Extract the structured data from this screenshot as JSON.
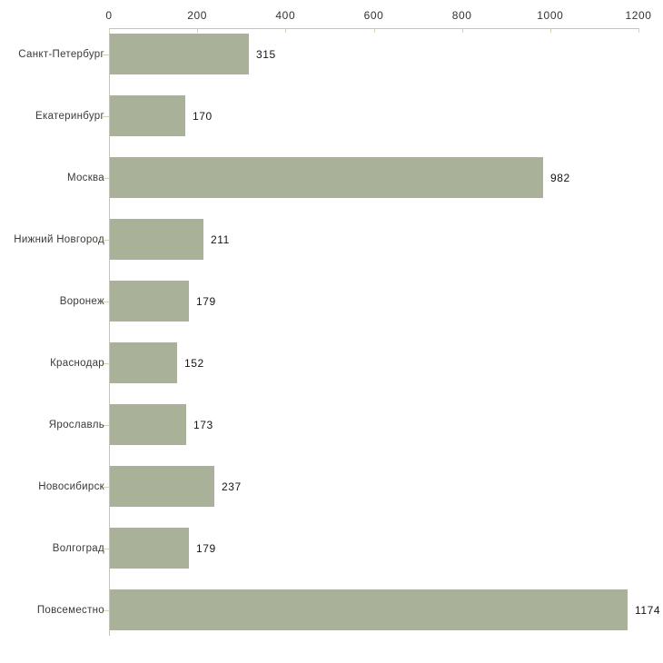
{
  "chart_data": {
    "type": "bar",
    "orientation": "horizontal",
    "title": "",
    "xlabel": "",
    "ylabel": "",
    "categories": [
      "Санкт-Петербург",
      "Екатеринбург",
      "Москва",
      "Нижний Новгород",
      "Воронеж",
      "Краснодар",
      "Ярославль",
      "Новосибирск",
      "Волгоград",
      "Повсеместно"
    ],
    "values": [
      315,
      170,
      982,
      211,
      179,
      152,
      173,
      237,
      179,
      1174
    ],
    "value_labels": [
      "315",
      "170",
      "982",
      "211",
      "179",
      "152",
      "173",
      "237",
      "179",
      "1174"
    ],
    "x_ticks": [
      0,
      200,
      400,
      600,
      800,
      1000,
      1200
    ],
    "x_tick_labels": [
      "0",
      "200",
      "400",
      "600",
      "800",
      "1000",
      "1200"
    ],
    "xlim": [
      0,
      1200
    ],
    "grid": false,
    "legend": null,
    "data_labels": true,
    "colors": {
      "bar_fill": "#a9b199",
      "axis_line": "#c3c3bd",
      "tick_mark": "#d3d6b4",
      "tick_label_text": "#33332f",
      "category_label_text": "#3a3a36",
      "value_label_text": "#141414",
      "background": "#ffffff"
    }
  }
}
